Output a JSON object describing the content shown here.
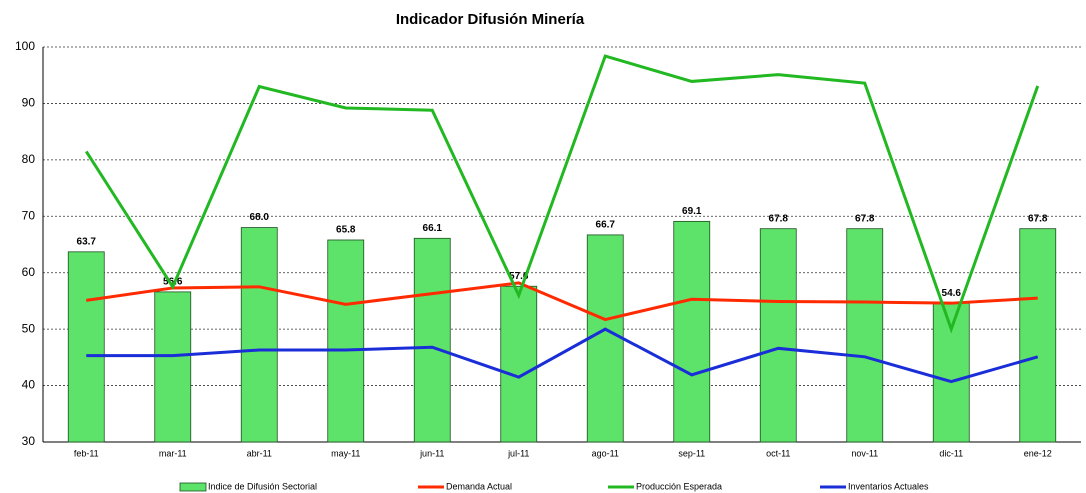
{
  "chart_data": {
    "type": "bar",
    "title": "Indicador Difusión Minería",
    "categories": [
      "feb-11",
      "mar-11",
      "abr-11",
      "may-11",
      "jun-11",
      "jul-11",
      "ago-11",
      "sep-11",
      "oct-11",
      "nov-11",
      "dic-11",
      "ene-12"
    ],
    "ylim": [
      30,
      100
    ],
    "yticks": [
      30,
      40,
      50,
      60,
      70,
      80,
      90,
      100
    ],
    "grid": true,
    "legend": "bottom",
    "series": [
      {
        "name": "Indice de Difusión Sectorial",
        "type": "bar",
        "color": "#5ee36a",
        "values": [
          63.7,
          56.6,
          68.0,
          65.8,
          66.1,
          57.6,
          66.7,
          69.1,
          67.8,
          67.8,
          54.6,
          67.8
        ],
        "value_labels": [
          "63.7",
          "56.6",
          "68.0",
          "65.8",
          "66.1",
          "57.6",
          "66.7",
          "69.1",
          "67.8",
          "67.8",
          "54.6",
          "67.8"
        ]
      },
      {
        "name": "Demanda Actual",
        "type": "line",
        "color": "#ff2a00",
        "values": [
          55.1,
          57.3,
          57.5,
          54.4,
          56.3,
          58.2,
          51.7,
          55.3,
          54.9,
          54.8,
          54.6,
          55.5
        ]
      },
      {
        "name": "Producción Esperada",
        "type": "line",
        "color": "#22b822",
        "values": [
          81.5,
          57.5,
          93.0,
          89.2,
          88.8,
          56.0,
          98.4,
          93.9,
          95.1,
          93.6,
          50.0,
          93.1
        ]
      },
      {
        "name": "Inventarios Actuales",
        "type": "line",
        "color": "#1a2ed8",
        "values": [
          45.3,
          45.3,
          46.3,
          46.3,
          46.8,
          41.5,
          50.0,
          41.9,
          46.6,
          45.1,
          40.7,
          45.1
        ]
      }
    ]
  }
}
